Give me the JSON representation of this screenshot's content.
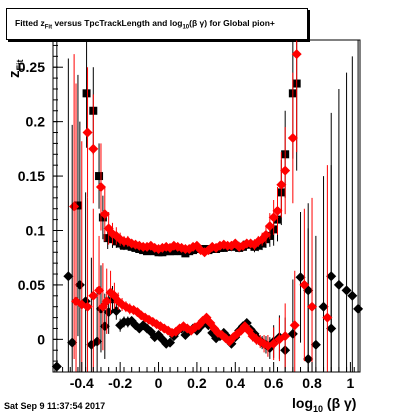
{
  "page": {
    "title_prefix": "Fitted  z",
    "title_sub1": "Fit",
    "title_mid": " versus TpcTrackLength and log",
    "title_sub2": "10",
    "title_suffix": "(β γ) for Global pion+",
    "timestamp": "Sat Sep  9 11:37:54 2017"
  },
  "chart_data": {
    "type": "scatter",
    "title": "Fitted  z_Fit versus TpcTrackLength and log_10(β γ) for Global pion+",
    "xlabel": "log_10 (β γ)",
    "ylabel": "z_Fit",
    "xlim": [
      -0.55,
      1.05
    ],
    "ylim": [
      -0.03,
      0.275
    ],
    "xticks": [
      -0.4,
      -0.2,
      0,
      0.2,
      0.4,
      0.6,
      0.8,
      1
    ],
    "xtick_labels": [
      "-0.4",
      "-0.2",
      "0",
      "0.2",
      "0.4",
      "0.6",
      "0.8",
      "1"
    ],
    "yticks": [
      0,
      0.05,
      0.1,
      0.15,
      0.2,
      0.25
    ],
    "ytick_labels": [
      "0",
      "0.05",
      "0.1",
      "0.15",
      "0.2",
      "0.25"
    ],
    "colors": {
      "black": "#000000",
      "red": "#ff0000"
    },
    "series": [
      {
        "marker": "square",
        "color": "#000000",
        "points": [
          [
            -0.42,
            0.123,
            0.12
          ],
          [
            -0.375,
            0.226,
            0.05
          ],
          [
            -0.34,
            0.21,
            0.04
          ],
          [
            -0.31,
            0.15,
            0.03
          ],
          [
            -0.29,
            0.112,
            0.02
          ],
          [
            -0.265,
            0.093,
            0.01
          ],
          [
            -0.24,
            0.092,
            0.008
          ],
          [
            -0.22,
            0.09,
            0.006
          ],
          [
            -0.2,
            0.088,
            0.005
          ],
          [
            -0.18,
            0.086,
            0.004
          ],
          [
            -0.16,
            0.087,
            0.004
          ],
          [
            -0.14,
            0.085,
            0.004
          ],
          [
            -0.12,
            0.084,
            0.004
          ],
          [
            -0.1,
            0.083,
            0.004
          ],
          [
            -0.08,
            0.082,
            0.003
          ],
          [
            -0.06,
            0.081,
            0.003
          ],
          [
            -0.04,
            0.082,
            0.003
          ],
          [
            -0.02,
            0.081,
            0.003
          ],
          [
            0.0,
            0.08,
            0.003
          ],
          [
            0.02,
            0.08,
            0.003
          ],
          [
            0.04,
            0.081,
            0.003
          ],
          [
            0.06,
            0.081,
            0.003
          ],
          [
            0.08,
            0.081,
            0.003
          ],
          [
            0.1,
            0.082,
            0.003
          ],
          [
            0.12,
            0.081,
            0.003
          ],
          [
            0.14,
            0.079,
            0.003
          ],
          [
            0.16,
            0.081,
            0.003
          ],
          [
            0.18,
            0.082,
            0.003
          ],
          [
            0.2,
            0.083,
            0.003
          ],
          [
            0.22,
            0.083,
            0.003
          ],
          [
            0.24,
            0.083,
            0.003
          ],
          [
            0.26,
            0.082,
            0.003
          ],
          [
            0.28,
            0.083,
            0.003
          ],
          [
            0.3,
            0.083,
            0.003
          ],
          [
            0.32,
            0.084,
            0.003
          ],
          [
            0.34,
            0.084,
            0.003
          ],
          [
            0.36,
            0.085,
            0.003
          ],
          [
            0.38,
            0.085,
            0.004
          ],
          [
            0.4,
            0.086,
            0.004
          ],
          [
            0.42,
            0.084,
            0.004
          ],
          [
            0.44,
            0.085,
            0.004
          ],
          [
            0.46,
            0.087,
            0.004
          ],
          [
            0.48,
            0.087,
            0.004
          ],
          [
            0.5,
            0.085,
            0.005
          ],
          [
            0.52,
            0.086,
            0.005
          ],
          [
            0.54,
            0.088,
            0.006
          ],
          [
            0.56,
            0.092,
            0.008
          ],
          [
            0.58,
            0.095,
            0.01
          ],
          [
            0.6,
            0.101,
            0.015
          ],
          [
            0.62,
            0.11,
            0.02
          ],
          [
            0.64,
            0.135,
            0.03
          ],
          [
            0.66,
            0.17,
            0.04
          ],
          [
            0.7,
            0.226,
            0.06
          ],
          [
            0.72,
            0.235,
            0.08
          ]
        ]
      },
      {
        "marker": "diamond",
        "color": "#ff0000",
        "points": [
          [
            -0.44,
            0.122,
            0.14
          ],
          [
            -0.37,
            0.19,
            0.06
          ],
          [
            -0.34,
            0.175,
            0.05
          ],
          [
            -0.3,
            0.14,
            0.04
          ],
          [
            -0.28,
            0.115,
            0.025
          ],
          [
            -0.26,
            0.102,
            0.015
          ],
          [
            -0.24,
            0.097,
            0.01
          ],
          [
            -0.22,
            0.095,
            0.008
          ],
          [
            -0.2,
            0.092,
            0.006
          ],
          [
            -0.18,
            0.09,
            0.005
          ],
          [
            -0.16,
            0.09,
            0.005
          ],
          [
            -0.14,
            0.088,
            0.004
          ],
          [
            -0.12,
            0.087,
            0.004
          ],
          [
            -0.1,
            0.086,
            0.004
          ],
          [
            -0.08,
            0.085,
            0.003
          ],
          [
            -0.06,
            0.085,
            0.003
          ],
          [
            -0.04,
            0.086,
            0.003
          ],
          [
            -0.02,
            0.084,
            0.003
          ],
          [
            0.0,
            0.083,
            0.003
          ],
          [
            0.02,
            0.084,
            0.003
          ],
          [
            0.04,
            0.085,
            0.003
          ],
          [
            0.06,
            0.084,
            0.003
          ],
          [
            0.08,
            0.086,
            0.003
          ],
          [
            0.1,
            0.085,
            0.003
          ],
          [
            0.12,
            0.084,
            0.003
          ],
          [
            0.14,
            0.083,
            0.003
          ],
          [
            0.16,
            0.083,
            0.003
          ],
          [
            0.18,
            0.085,
            0.003
          ],
          [
            0.2,
            0.086,
            0.003
          ],
          [
            0.22,
            0.082,
            0.003
          ],
          [
            0.24,
            0.08,
            0.003
          ],
          [
            0.26,
            0.082,
            0.003
          ],
          [
            0.28,
            0.085,
            0.003
          ],
          [
            0.3,
            0.084,
            0.003
          ],
          [
            0.32,
            0.086,
            0.003
          ],
          [
            0.34,
            0.087,
            0.003
          ],
          [
            0.36,
            0.086,
            0.003
          ],
          [
            0.38,
            0.086,
            0.004
          ],
          [
            0.4,
            0.088,
            0.004
          ],
          [
            0.42,
            0.085,
            0.004
          ],
          [
            0.44,
            0.086,
            0.004
          ],
          [
            0.46,
            0.088,
            0.004
          ],
          [
            0.48,
            0.088,
            0.004
          ],
          [
            0.5,
            0.087,
            0.005
          ],
          [
            0.52,
            0.09,
            0.005
          ],
          [
            0.54,
            0.092,
            0.006
          ],
          [
            0.56,
            0.096,
            0.008
          ],
          [
            0.58,
            0.104,
            0.012
          ],
          [
            0.6,
            0.112,
            0.016
          ],
          [
            0.62,
            0.118,
            0.022
          ],
          [
            0.64,
            0.142,
            0.03
          ],
          [
            0.66,
            0.155,
            0.04
          ],
          [
            0.7,
            0.185,
            0.06
          ],
          [
            0.72,
            0.262,
            0.09
          ]
        ]
      },
      {
        "marker": "diamond",
        "color": "#000000",
        "points": [
          [
            -0.53,
            -0.025,
            0.3
          ],
          [
            -0.47,
            0.058,
            0.2
          ],
          [
            -0.45,
            -0.003,
            0.2
          ],
          [
            -0.41,
            0.05,
            0.15
          ],
          [
            -0.38,
            0.035,
            0.1
          ],
          [
            -0.35,
            -0.005,
            0.08
          ],
          [
            -0.32,
            -0.002,
            0.05
          ],
          [
            -0.3,
            0.028,
            0.04
          ],
          [
            -0.28,
            0.012,
            0.03
          ],
          [
            -0.26,
            0.025,
            0.02
          ],
          [
            -0.24,
            0.037,
            0.012
          ],
          [
            -0.22,
            0.026,
            0.008
          ],
          [
            -0.2,
            0.013,
            0.006
          ],
          [
            -0.18,
            0.016,
            0.005
          ],
          [
            -0.16,
            0.016,
            0.005
          ],
          [
            -0.14,
            0.017,
            0.004
          ],
          [
            -0.12,
            0.013,
            0.004
          ],
          [
            -0.1,
            0.01,
            0.004
          ],
          [
            -0.08,
            0.013,
            0.003
          ],
          [
            -0.06,
            0.01,
            0.003
          ],
          [
            -0.04,
            0.007,
            0.003
          ],
          [
            -0.02,
            0.002,
            0.003
          ],
          [
            0.0,
            0.004,
            0.003
          ],
          [
            0.02,
            0.0,
            0.003
          ],
          [
            0.04,
            -0.004,
            0.003
          ],
          [
            0.06,
            -0.003,
            0.003
          ],
          [
            0.08,
            0.003,
            0.003
          ],
          [
            0.1,
            0.008,
            0.003
          ],
          [
            0.12,
            0.01,
            0.003
          ],
          [
            0.14,
            0.004,
            0.003
          ],
          [
            0.16,
            0.008,
            0.003
          ],
          [
            0.18,
            0.01,
            0.003
          ],
          [
            0.2,
            0.008,
            0.003
          ],
          [
            0.22,
            0.012,
            0.003
          ],
          [
            0.24,
            0.016,
            0.003
          ],
          [
            0.26,
            0.013,
            0.003
          ],
          [
            0.28,
            0.006,
            0.003
          ],
          [
            0.3,
            0.001,
            0.003
          ],
          [
            0.32,
            0.003,
            0.003
          ],
          [
            0.34,
            0.006,
            0.003
          ],
          [
            0.36,
            0.002,
            0.003
          ],
          [
            0.38,
            -0.004,
            0.004
          ],
          [
            0.4,
            0.002,
            0.004
          ],
          [
            0.42,
            0.008,
            0.004
          ],
          [
            0.44,
            0.012,
            0.004
          ],
          [
            0.46,
            0.015,
            0.004
          ],
          [
            0.48,
            0.009,
            0.004
          ],
          [
            0.5,
            0.005,
            0.005
          ],
          [
            0.52,
            0.0,
            0.005
          ],
          [
            0.54,
            -0.003,
            0.006
          ],
          [
            0.56,
            -0.005,
            0.008
          ],
          [
            0.58,
            -0.008,
            0.01
          ],
          [
            0.6,
            -0.002,
            0.015
          ],
          [
            0.63,
            0.002,
            0.02
          ],
          [
            0.66,
            -0.01,
            0.03
          ],
          [
            0.7,
            0.005,
            0.05
          ],
          [
            0.74,
            0.057,
            0.06
          ],
          [
            0.78,
            0.045,
            0.08
          ],
          [
            0.82,
            -0.005,
            0.1
          ],
          [
            0.86,
            0.03,
            0.12
          ],
          [
            0.9,
            0.058,
            0.15
          ],
          [
            0.94,
            0.05,
            0.18
          ],
          [
            0.98,
            0.045,
            0.2
          ],
          [
            1.01,
            0.04,
            0.22
          ],
          [
            1.04,
            0.028,
            0.25
          ],
          [
            0.78,
            -0.018,
            0.12
          ],
          [
            0.9,
            0.01,
            0.15
          ]
        ]
      },
      {
        "marker": "diamond",
        "color": "#ff0000",
        "points": [
          [
            -0.43,
            0.035,
            0.2
          ],
          [
            -0.4,
            0.032,
            0.15
          ],
          [
            -0.37,
            0.03,
            0.1
          ],
          [
            -0.34,
            0.04,
            0.08
          ],
          [
            -0.31,
            0.045,
            0.05
          ],
          [
            -0.29,
            0.03,
            0.04
          ],
          [
            -0.27,
            0.035,
            0.03
          ],
          [
            -0.25,
            0.043,
            0.02
          ],
          [
            -0.23,
            0.04,
            0.012
          ],
          [
            -0.21,
            0.035,
            0.008
          ],
          [
            -0.19,
            0.032,
            0.006
          ],
          [
            -0.17,
            0.03,
            0.005
          ],
          [
            -0.15,
            0.028,
            0.005
          ],
          [
            -0.13,
            0.027,
            0.004
          ],
          [
            -0.11,
            0.025,
            0.004
          ],
          [
            -0.09,
            0.022,
            0.004
          ],
          [
            -0.07,
            0.02,
            0.003
          ],
          [
            -0.05,
            0.018,
            0.003
          ],
          [
            -0.03,
            0.016,
            0.003
          ],
          [
            -0.01,
            0.014,
            0.003
          ],
          [
            0.01,
            0.012,
            0.003
          ],
          [
            0.03,
            0.01,
            0.003
          ],
          [
            0.05,
            0.008,
            0.003
          ],
          [
            0.07,
            0.006,
            0.003
          ],
          [
            0.09,
            0.007,
            0.003
          ],
          [
            0.11,
            0.01,
            0.003
          ],
          [
            0.13,
            0.012,
            0.003
          ],
          [
            0.15,
            0.01,
            0.003
          ],
          [
            0.17,
            0.008,
            0.003
          ],
          [
            0.19,
            0.011,
            0.003
          ],
          [
            0.21,
            0.013,
            0.003
          ],
          [
            0.23,
            0.017,
            0.003
          ],
          [
            0.25,
            0.02,
            0.003
          ],
          [
            0.27,
            0.015,
            0.003
          ],
          [
            0.29,
            0.01,
            0.003
          ],
          [
            0.31,
            0.006,
            0.003
          ],
          [
            0.33,
            0.004,
            0.003
          ],
          [
            0.35,
            0.001,
            0.003
          ],
          [
            0.37,
            -0.002,
            0.004
          ],
          [
            0.39,
            0.002,
            0.004
          ],
          [
            0.41,
            0.005,
            0.004
          ],
          [
            0.43,
            0.008,
            0.004
          ],
          [
            0.45,
            0.012,
            0.004
          ],
          [
            0.47,
            0.008,
            0.004
          ],
          [
            0.49,
            0.003,
            0.005
          ],
          [
            0.51,
            0.0,
            0.005
          ],
          [
            0.53,
            -0.002,
            0.006
          ],
          [
            0.55,
            -0.004,
            0.008
          ],
          [
            0.57,
            -0.006,
            0.01
          ],
          [
            0.6,
            -0.004,
            0.015
          ],
          [
            0.63,
            0.0,
            0.02
          ],
          [
            0.66,
            0.003,
            0.03
          ],
          [
            0.71,
            0.013,
            0.05
          ],
          [
            0.76,
            0.05,
            0.07
          ],
          [
            0.8,
            0.03,
            0.1
          ],
          [
            0.88,
            0.02,
            0.14
          ]
        ]
      }
    ]
  }
}
